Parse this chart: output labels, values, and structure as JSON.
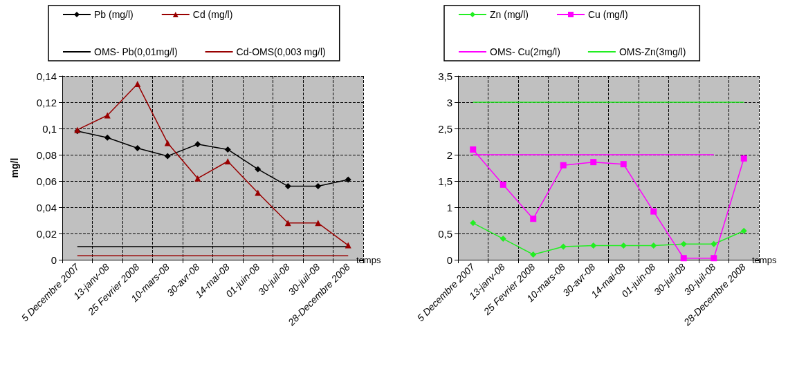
{
  "chart_data": [
    {
      "type": "line",
      "ylabel": "mg/l",
      "xlabel": "temps",
      "legend": "top",
      "grid": true,
      "categories": [
        "5 Decembre 2007",
        "13-janv-08",
        "25 Fevrier 2008",
        "10-mars-08",
        "30-avr-08",
        "14-mai-08",
        "01-juin-08",
        "30-juil-08",
        "30-juil-08",
        "28-Decembre 2008"
      ],
      "ylim": [
        0,
        0.14
      ],
      "yticks": [
        {
          "value": 0,
          "label": "0"
        },
        {
          "value": 0.02,
          "label": "0,02"
        },
        {
          "value": 0.04,
          "label": "0,04"
        },
        {
          "value": 0.06,
          "label": "0,06"
        },
        {
          "value": 0.08,
          "label": "0,08"
        },
        {
          "value": 0.1,
          "label": "0,1"
        },
        {
          "value": 0.12,
          "label": "0,12"
        },
        {
          "value": 0.14,
          "label": "0,14"
        }
      ],
      "series": [
        {
          "name": "Pb (mg/l)",
          "color": "#000000",
          "marker": "diamond",
          "values": [
            0.098,
            0.093,
            0.085,
            0.079,
            0.088,
            0.084,
            0.069,
            0.056,
            0.056,
            0.061
          ]
        },
        {
          "name": "Cd (mg/l)",
          "color": "#990000",
          "marker": "triangle",
          "values": [
            0.099,
            0.11,
            0.134,
            0.089,
            0.062,
            0.075,
            0.051,
            0.028,
            0.028,
            0.011
          ]
        },
        {
          "name": "OMS- Pb(0,01mg/l)",
          "color": "#000000",
          "marker": "none",
          "values": [
            0.01,
            0.01,
            0.01,
            0.01,
            0.01,
            0.01,
            0.01,
            0.01,
            0.01,
            0.01
          ]
        },
        {
          "name": "Cd-OMS(0,003 mg/l)",
          "color": "#990000",
          "marker": "none",
          "values": [
            0.003,
            0.003,
            0.003,
            0.003,
            0.003,
            0.003,
            0.003,
            0.003,
            0.003,
            0.003
          ]
        }
      ]
    },
    {
      "type": "line",
      "xlabel": "temps",
      "legend": "top",
      "grid": true,
      "categories": [
        "5 Decembre 2007",
        "13-janv-08",
        "25 Fevrier 2008",
        "10-mars-08",
        "30-avr-08",
        "14-mai-08",
        "01-juin-08",
        "30-juil-08",
        "30-juil-08",
        "28-Decembre 2008"
      ],
      "ylim": [
        0,
        3.5
      ],
      "yticks": [
        {
          "value": 0,
          "label": "0"
        },
        {
          "value": 0.5,
          "label": "0,5"
        },
        {
          "value": 1,
          "label": "1"
        },
        {
          "value": 1.5,
          "label": "1,5"
        },
        {
          "value": 2,
          "label": "2"
        },
        {
          "value": 2.5,
          "label": "2,5"
        },
        {
          "value": 3,
          "label": "3"
        },
        {
          "value": 3.5,
          "label": "3,5"
        }
      ],
      "series": [
        {
          "name": "Zn (mg/l)",
          "color": "#22ee22",
          "marker": "diamond",
          "values": [
            0.7,
            0.4,
            0.1,
            0.25,
            0.27,
            0.27,
            0.27,
            0.3,
            0.3,
            0.55
          ]
        },
        {
          "name": "Cu (mg/l)",
          "color": "#ff00ff",
          "marker": "square",
          "values": [
            2.1,
            1.43,
            0.78,
            1.8,
            1.86,
            1.82,
            0.92,
            0.03,
            0.03,
            1.93
          ]
        },
        {
          "name": "OMS- Cu(2mg/l)",
          "color": "#ff00ff",
          "marker": "none",
          "values": [
            2,
            2,
            2,
            2,
            2,
            2,
            2,
            2,
            2,
            null
          ]
        },
        {
          "name": "OMS-Zn(3mg/l)",
          "color": "#22ee22",
          "marker": "none",
          "values": [
            3,
            3,
            3,
            3,
            3,
            3,
            3,
            3,
            3,
            3
          ]
        }
      ]
    }
  ]
}
